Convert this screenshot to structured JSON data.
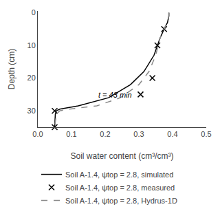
{
  "chart_data": {
    "type": "line",
    "xlabel": "Soil water content (cm³/cm³)",
    "ylabel": "Depth (cm)",
    "xlim": [
      0.0,
      0.5
    ],
    "ylim": [
      35,
      -0.5
    ],
    "xticks": [
      {
        "value": 0.0,
        "label": "0.0"
      },
      0.1,
      0.2,
      0.3,
      0.4,
      0.5
    ],
    "yticks": [
      0,
      10,
      20,
      30
    ],
    "grid": false,
    "legend": "bottom",
    "annotations": [
      {
        "text": "t = 43 min",
        "x": 0.175,
        "y": 23.5
      }
    ],
    "series": [
      {
        "name": "Soil A-1.4, ψtop = 2.8, simulated",
        "type": "line",
        "line_style": "solid",
        "color": "#000000",
        "x": [
          0.389,
          0.389,
          0.385,
          0.375,
          0.362,
          0.345,
          0.315,
          0.275,
          0.21,
          0.12,
          0.065,
          0.055,
          0.052,
          0.05
        ],
        "values": [
          0,
          1,
          3,
          5,
          8,
          13,
          18,
          22,
          26,
          28.5,
          29.5,
          30.0,
          31.0,
          35
        ]
      },
      {
        "name": "Soil A-1.4, ψtop = 2.8, measured",
        "type": "scatter",
        "marker": "x",
        "color": "#000000",
        "x": [
          0.375,
          0.355,
          0.34,
          0.305,
          0.05,
          0.05
        ],
        "values": [
          5,
          10,
          20,
          25,
          30,
          35
        ]
      },
      {
        "name": "Soil A-1.4, ψtop = 2.8, Hydrus-1D",
        "type": "line",
        "line_style": "dashed",
        "color": "#888888",
        "x": [
          0.389,
          0.389,
          0.385,
          0.375,
          0.362,
          0.35,
          0.33,
          0.3,
          0.245,
          0.175,
          0.09,
          0.065,
          0.055,
          0.05
        ],
        "values": [
          0,
          1,
          3,
          5,
          8,
          13,
          18,
          22,
          26,
          28.5,
          29.5,
          30.0,
          31.0,
          35
        ]
      }
    ]
  }
}
